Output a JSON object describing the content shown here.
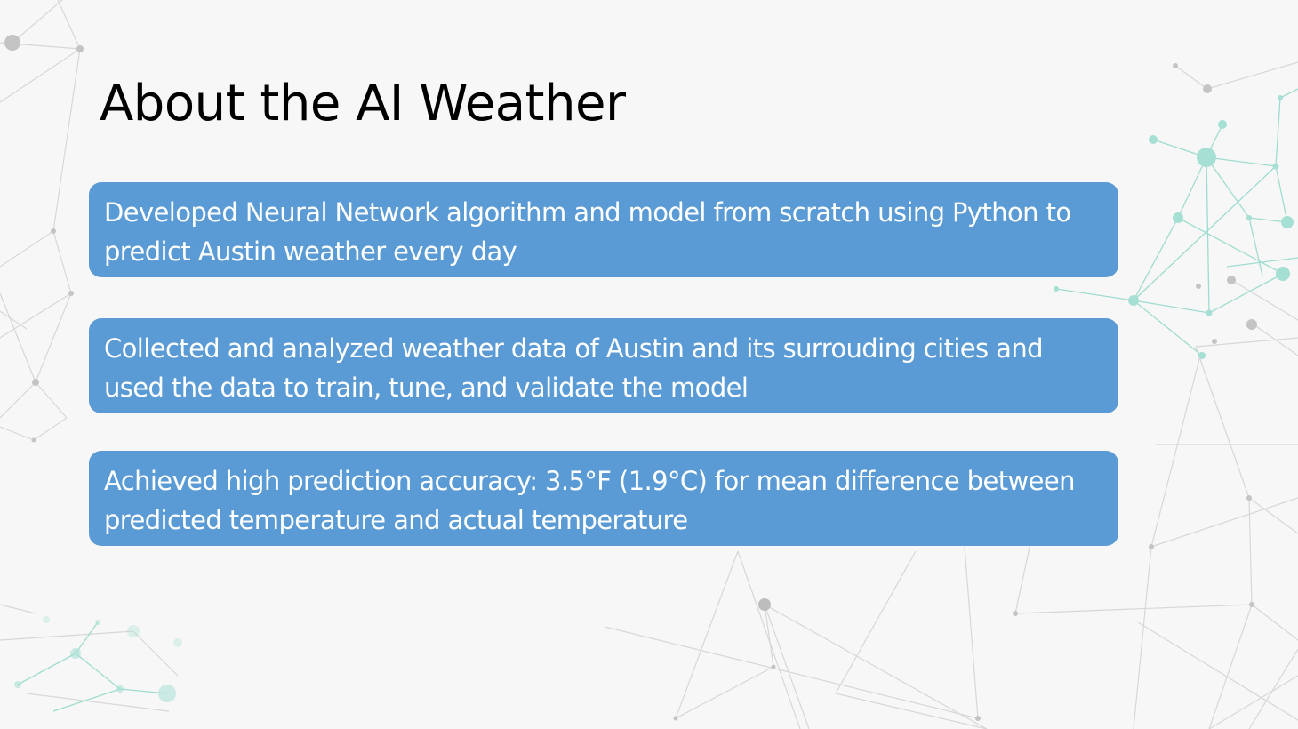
{
  "slide": {
    "title": "About the AI Weather",
    "bullets": [
      "Developed Neural Network algorithm and model from scratch using Python to predict Austin weather every day",
      "Collected and analyzed weather data of Austin and its surrouding cities and used the data to train, tune, and validate the model",
      "Achieved high prediction accuracy: 3.5°F (1.9°C) for mean difference between predicted temperature and actual temperature"
    ]
  },
  "colors": {
    "background": "#f7f7f7",
    "box_fill": "#5b9bd5",
    "box_text": "#ffffff",
    "title_text": "#000000",
    "network_gray": "#c8c8c8",
    "network_teal": "#8fd6c7"
  }
}
